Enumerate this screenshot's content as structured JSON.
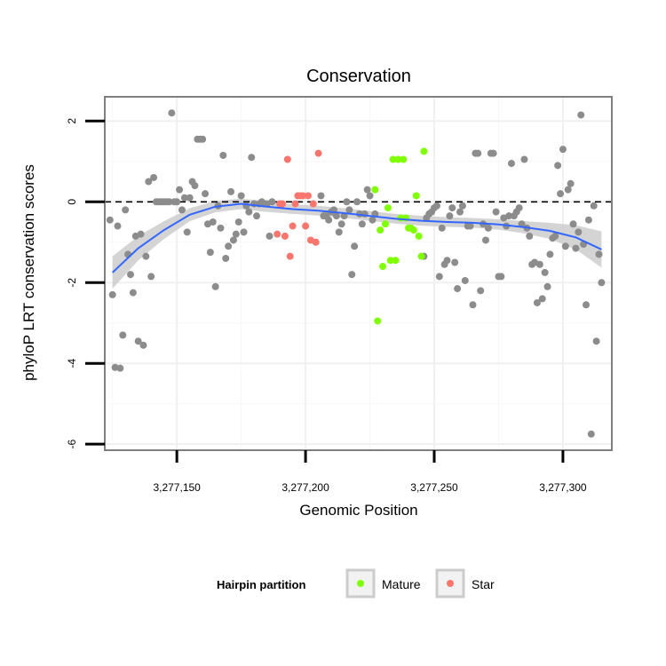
{
  "chart_data": {
    "type": "scatter",
    "title": "Conservation",
    "xlabel": "Genomic Position",
    "ylabel": "phyloP LRT conservation scores",
    "xlim": [
      3277122,
      3277319
    ],
    "ylim": [
      -6.15,
      2.6
    ],
    "x_ticks": [
      3277150,
      3277200,
      3277250,
      3277300
    ],
    "x_tick_labels": [
      "3,277,150",
      "3,277,200",
      "3,277,250",
      "3,277,300"
    ],
    "y_ticks": [
      2,
      0,
      -2,
      -4,
      -6
    ],
    "y_tick_labels": [
      "2",
      "0",
      "-2",
      "-4",
      "-6"
    ],
    "grid": true,
    "reference_line": {
      "y": 0,
      "style": "dashed",
      "color": "#000000"
    },
    "legend": {
      "title": "Hairpin partition",
      "placement": "bottom",
      "entries": [
        {
          "label": "Mature",
          "color": "#7FFF00"
        },
        {
          "label": "Star",
          "color": "#F8766D"
        }
      ]
    },
    "colors": {
      "other": "#8C8C8C",
      "mature": "#7FFF00",
      "star": "#F8766D",
      "smooth": "#3366FF",
      "band": "#CCCCCC"
    },
    "series": [
      {
        "key": "other",
        "x": [
          3277124,
          3277125,
          3277126,
          3277127,
          3277128,
          3277129,
          3277130,
          3277131,
          3277132,
          3277133,
          3277134,
          3277135,
          3277136,
          3277137,
          3277138,
          3277139,
          3277140,
          3277141,
          3277142,
          3277143,
          3277144,
          3277145,
          3277146,
          3277147,
          3277148,
          3277149,
          3277150,
          3277151,
          3277152,
          3277153,
          3277154,
          3277155,
          3277156,
          3277157,
          3277158,
          3277159,
          3277160,
          3277161,
          3277162,
          3277163,
          3277164,
          3277165,
          3277166,
          3277167,
          3277168,
          3277169,
          3277170,
          3277171,
          3277172,
          3277173,
          3277174,
          3277175,
          3277176,
          3277177,
          3277178,
          3277179,
          3277180,
          3277181,
          3277182,
          3277183,
          3277184,
          3277185,
          3277186,
          3277187,
          3277206,
          3277207,
          3277208,
          3277209,
          3277210,
          3277211,
          3277212,
          3277213,
          3277214,
          3277215,
          3277216,
          3277217,
          3277218,
          3277219,
          3277220,
          3277221,
          3277222,
          3277223,
          3277224,
          3277225,
          3277226,
          3277227,
          3277246,
          3277247,
          3277248,
          3277249,
          3277250,
          3277251,
          3277252,
          3277253,
          3277254,
          3277255,
          3277256,
          3277257,
          3277258,
          3277259,
          3277260,
          3277261,
          3277262,
          3277263,
          3277264,
          3277265,
          3277266,
          3277267,
          3277268,
          3277269,
          3277270,
          3277271,
          3277272,
          3277273,
          3277274,
          3277275,
          3277276,
          3277277,
          3277278,
          3277279,
          3277280,
          3277281,
          3277282,
          3277283,
          3277284,
          3277285,
          3277286,
          3277287,
          3277288,
          3277289,
          3277290,
          3277291,
          3277292,
          3277293,
          3277294,
          3277295,
          3277296,
          3277297,
          3277298,
          3277299,
          3277300,
          3277301,
          3277302,
          3277303,
          3277304,
          3277305,
          3277306,
          3277307,
          3277308,
          3277309,
          3277310,
          3277311,
          3277312,
          3277313,
          3277314,
          3277315
        ],
        "y": [
          -0.45,
          -2.3,
          -4.1,
          -0.6,
          -4.12,
          -3.3,
          -0.2,
          -1.3,
          -1.8,
          -2.25,
          -0.85,
          -3.45,
          -0.8,
          -3.55,
          -1.35,
          0.5,
          -1.85,
          0.6,
          0,
          0,
          0,
          0,
          0,
          0,
          2.2,
          0,
          0,
          0.3,
          -0.2,
          0.1,
          -0.75,
          0.1,
          0.5,
          0.4,
          1.55,
          1.55,
          1.55,
          0.2,
          -0.55,
          -1.25,
          -0.5,
          -2.1,
          -0.1,
          -0.65,
          1.15,
          -1.4,
          -1.1,
          0.25,
          -0.95,
          -0.8,
          -0.5,
          0.15,
          -0.75,
          -0.1,
          -0.25,
          1.1,
          -0.05,
          -0.35,
          -0.05,
          0.0,
          -0.05,
          -0.05,
          -0.85,
          0.0,
          0.15,
          -0.35,
          -0.35,
          -0.45,
          -0.25,
          -0.2,
          -0.35,
          -0.75,
          -0.55,
          -0.35,
          0,
          -0.2,
          -1.8,
          -1.1,
          0,
          -0.3,
          -0.55,
          -0.3,
          0.3,
          0.15,
          -0.45,
          -0.3,
          -1.35,
          -0.4,
          -0.3,
          -0.25,
          -0.15,
          -0.1,
          -1.85,
          -0.65,
          -1.55,
          -1.45,
          -0.35,
          -0.15,
          -1.5,
          -2.15,
          -0.25,
          -0.1,
          -1.95,
          -0.6,
          -0.6,
          -2.55,
          1.2,
          1.2,
          -2.2,
          -0.55,
          -0.95,
          -0.65,
          1.2,
          1.2,
          -0.25,
          -1.85,
          -1.85,
          -0.4,
          -0.6,
          -0.35,
          0.95,
          -0.35,
          -0.25,
          -0.15,
          -0.55,
          1.05,
          -0.65,
          -0.85,
          -1.55,
          -1.5,
          -2.5,
          -1.55,
          -2.4,
          -1.75,
          -2.1,
          -1.3,
          -0.9,
          -0.85,
          0.9,
          0.2,
          1.3,
          -1.1,
          0.3,
          0.45,
          -0.55,
          -1.15,
          -0.75,
          2.15,
          -1.05,
          -2.55,
          -0.45,
          -5.75,
          -0.1,
          -3.45,
          -1.3,
          -2.0
        ]
      },
      {
        "key": "star",
        "x": [
          3277189,
          3277190,
          3277191,
          3277192,
          3277193,
          3277194,
          3277195,
          3277196,
          3277197,
          3277198,
          3277199,
          3277200,
          3277201,
          3277202,
          3277203,
          3277204,
          3277205
        ],
        "y": [
          -0.8,
          -0.05,
          -0.05,
          -0.85,
          1.05,
          -1.35,
          -0.6,
          -0.05,
          0.15,
          0.15,
          0.15,
          -0.6,
          0.15,
          -0.95,
          -0.05,
          -1.0,
          1.2
        ]
      },
      {
        "key": "mature",
        "x": [
          3277227,
          3277228,
          3277229,
          3277230,
          3277231,
          3277232,
          3277233,
          3277234,
          3277235,
          3277236,
          3277237,
          3277238,
          3277239,
          3277240,
          3277241,
          3277242,
          3277243,
          3277244,
          3277245,
          3277246
        ],
        "y": [
          0.3,
          -2.95,
          -0.7,
          -1.6,
          -0.55,
          -0.15,
          -1.45,
          1.05,
          -1.45,
          1.05,
          -0.4,
          1.05,
          -0.4,
          -0.65,
          -0.65,
          -0.7,
          0.15,
          -0.85,
          -1.35,
          1.25
        ]
      }
    ],
    "smooth": {
      "x": [
        3277125,
        3277135,
        3277145,
        3277155,
        3277165,
        3277175,
        3277185,
        3277195,
        3277205,
        3277215,
        3277225,
        3277235,
        3277245,
        3277255,
        3277265,
        3277275,
        3277285,
        3277295,
        3277305,
        3277315
      ],
      "y": [
        -1.75,
        -1.15,
        -0.7,
        -0.32,
        -0.12,
        -0.05,
        -0.12,
        -0.18,
        -0.22,
        -0.28,
        -0.35,
        -0.42,
        -0.47,
        -0.5,
        -0.52,
        -0.56,
        -0.63,
        -0.72,
        -0.88,
        -1.18
      ],
      "se": [
        0.4,
        0.3,
        0.22,
        0.16,
        0.14,
        0.13,
        0.13,
        0.12,
        0.12,
        0.12,
        0.12,
        0.12,
        0.12,
        0.12,
        0.12,
        0.13,
        0.15,
        0.2,
        0.3,
        0.45
      ]
    }
  }
}
